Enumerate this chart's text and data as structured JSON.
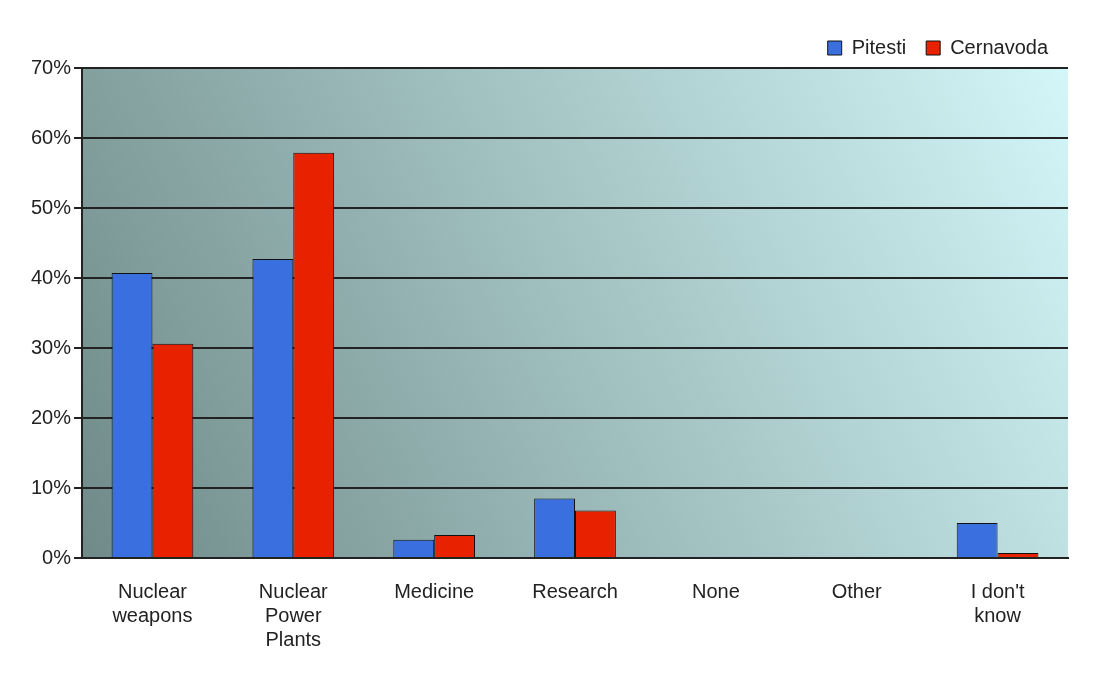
{
  "chart_data": {
    "type": "bar",
    "categories": [
      "Nuclear weapons",
      "Nuclear Power Plants",
      "Medicine",
      "Research",
      "None",
      "Other",
      "I don't know"
    ],
    "series": [
      {
        "name": "Pitesti",
        "color": "#3a6fe0",
        "values": [
          40.7,
          42.7,
          2.6,
          8.5,
          0,
          0,
          5.0
        ]
      },
      {
        "name": "Cernavoda",
        "color": "#e82200",
        "values": [
          30.6,
          57.9,
          3.3,
          6.8,
          0,
          0,
          0.7
        ]
      }
    ],
    "ylim": [
      0,
      70
    ],
    "yticks": [
      {
        "value": 0,
        "label": "0%"
      },
      {
        "value": 10,
        "label": "10%"
      },
      {
        "value": 20,
        "label": "20%"
      },
      {
        "value": 30,
        "label": "30%"
      },
      {
        "value": 40,
        "label": "40%"
      },
      {
        "value": 50,
        "label": "50%"
      },
      {
        "value": 60,
        "label": "60%"
      },
      {
        "value": 70,
        "label": "70%"
      }
    ],
    "grid": "y",
    "legend": "top right"
  }
}
